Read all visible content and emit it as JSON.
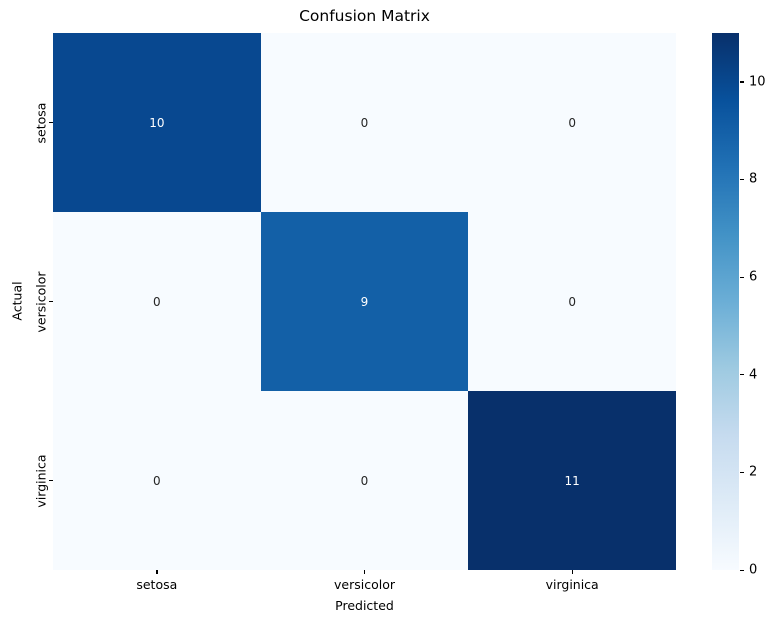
{
  "chart_data": {
    "type": "heatmap",
    "title": "Confusion Matrix",
    "xlabel": "Predicted",
    "ylabel": "Actual",
    "x_categories": [
      "setosa",
      "versicolor",
      "virginica"
    ],
    "y_categories": [
      "setosa",
      "versicolor",
      "virginica"
    ],
    "values": [
      [
        10,
        0,
        0
      ],
      [
        0,
        9,
        0
      ],
      [
        0,
        0,
        11
      ]
    ],
    "vmin": 0,
    "vmax": 11,
    "colormap": "Blues",
    "colormap_stops": [
      "#f7fbff",
      "#deebf7",
      "#c6dbef",
      "#9ecae1",
      "#6baed6",
      "#4292c6",
      "#2171b5",
      "#08519c",
      "#08306b"
    ],
    "cell_colors": [
      [
        "#084890",
        "#f7fbff",
        "#f7fbff"
      ],
      [
        "#f7fbff",
        "#1360a7",
        "#f7fbff"
      ],
      [
        "#f7fbff",
        "#f7fbff",
        "#08306b"
      ]
    ],
    "annotation_colors": [
      [
        "#ffffff",
        "#262626",
        "#262626"
      ],
      [
        "#262626",
        "#ffffff",
        "#262626"
      ],
      [
        "#262626",
        "#262626",
        "#ffffff"
      ]
    ],
    "colorbar": {
      "ticks": [
        0,
        2,
        4,
        6,
        8,
        10
      ],
      "min": 0,
      "max": 11,
      "position": "right"
    },
    "grid": false,
    "legend_position": "none"
  }
}
